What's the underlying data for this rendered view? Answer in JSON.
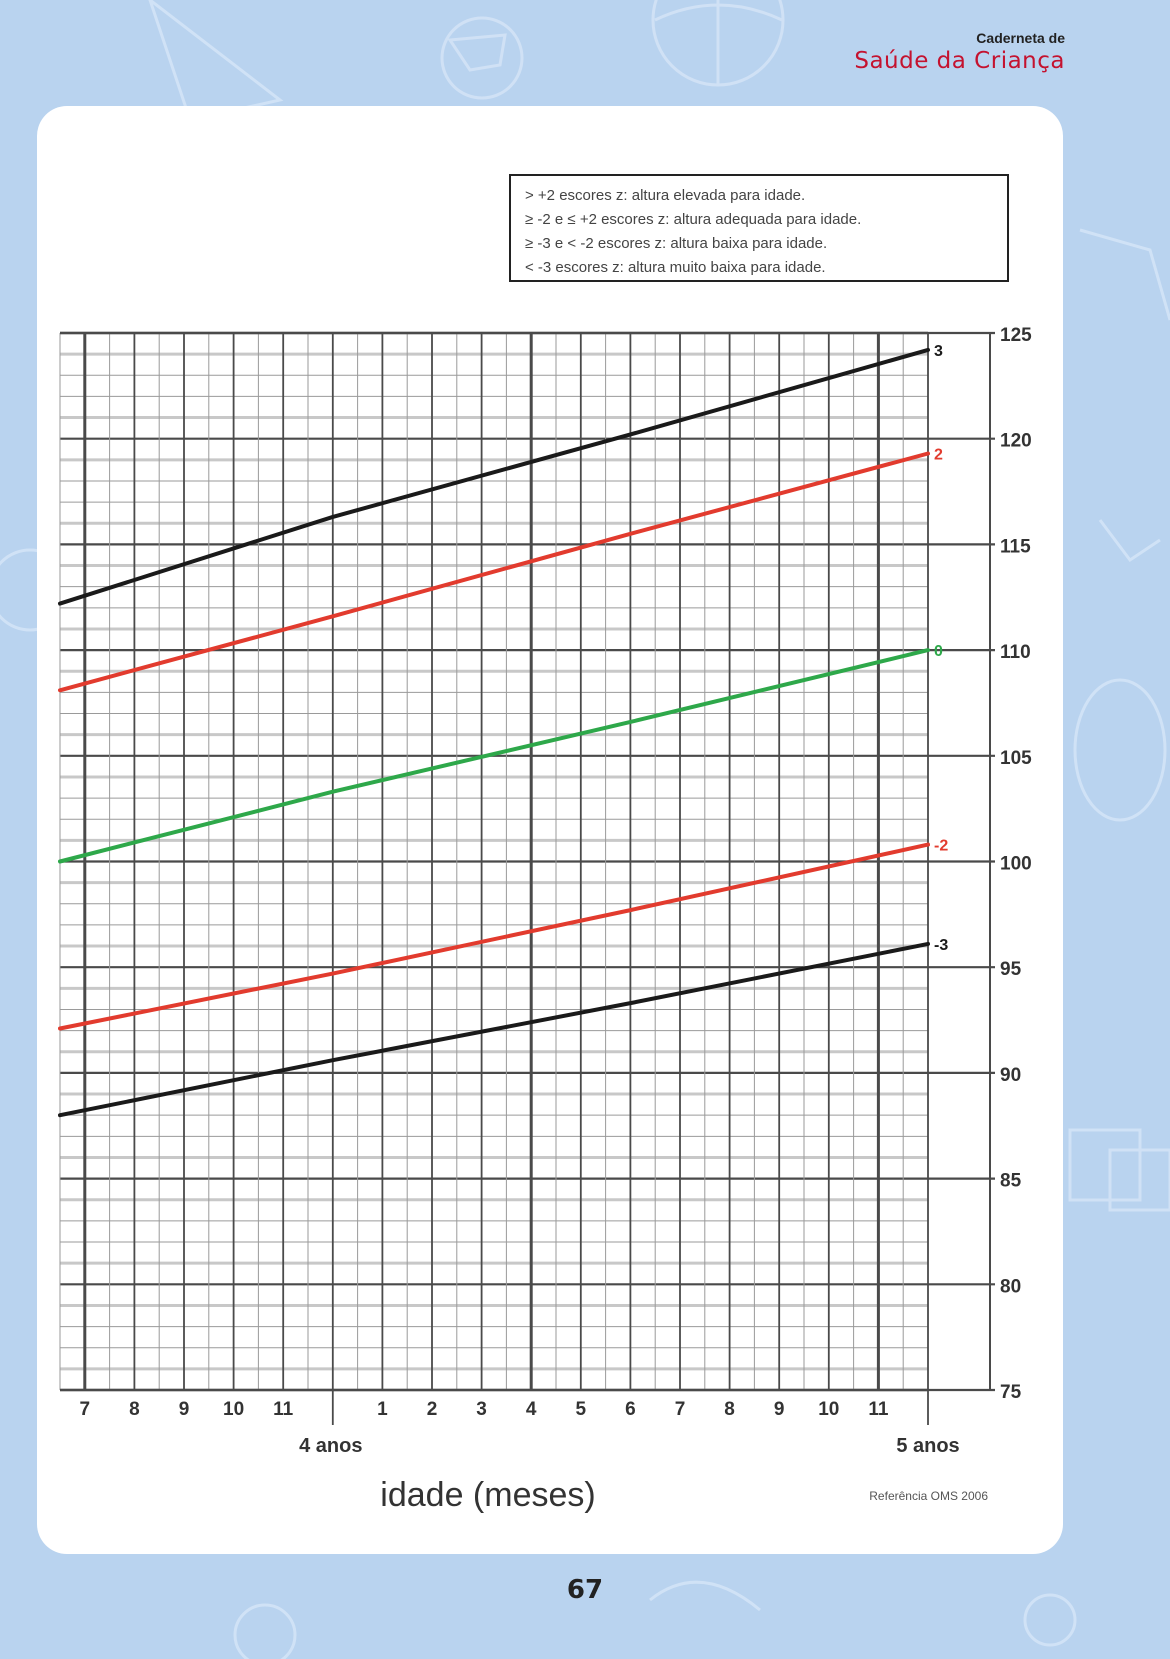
{
  "header": {
    "booklet_title_top": "Caderneta de",
    "booklet_title_main": "Saúde da Criança"
  },
  "legend_box": {
    "lines": [
      "> +2 escores z: altura elevada para idade.",
      "≥ -2 e ≤ +2 escores z: altura adequada para idade.",
      "≥ -3 e < -2 escores z: altura baixa para idade.",
      "< -3 escores z: altura muito baixa para idade."
    ]
  },
  "page_number": "67",
  "colors": {
    "background": "#b9d3ef",
    "black_curve": "#1a1a1a",
    "red_curve": "#e23b2e",
    "green_curve": "#2ea84a",
    "grid_major": "#4a4a4a",
    "grid_minor": "#9a9a9a",
    "grid_band": "#c8c8c8"
  },
  "chart_data": {
    "type": "line",
    "xlabel": "idade (meses)",
    "ylabel": "",
    "x_range": [
      42.5,
      60
    ],
    "ylim": [
      75,
      125
    ],
    "y_ticks": [
      75,
      80,
      85,
      90,
      95,
      100,
      105,
      110,
      115,
      120,
      125
    ],
    "x_ticks": [
      {
        "x": 43,
        "label": "7"
      },
      {
        "x": 44,
        "label": "8"
      },
      {
        "x": 45,
        "label": "9"
      },
      {
        "x": 46,
        "label": "10"
      },
      {
        "x": 47,
        "label": "11"
      },
      {
        "x": 49,
        "label": "1"
      },
      {
        "x": 50,
        "label": "2"
      },
      {
        "x": 51,
        "label": "3"
      },
      {
        "x": 52,
        "label": "4"
      },
      {
        "x": 53,
        "label": "5"
      },
      {
        "x": 54,
        "label": "6"
      },
      {
        "x": 55,
        "label": "7"
      },
      {
        "x": 56,
        "label": "8"
      },
      {
        "x": 57,
        "label": "9"
      },
      {
        "x": 58,
        "label": "10"
      },
      {
        "x": 59,
        "label": "11"
      }
    ],
    "year_labels": [
      {
        "x": 48,
        "label": "4 anos"
      },
      {
        "x": 60,
        "label": "5 anos"
      }
    ],
    "source_note": "Referência OMS 2006",
    "grid": true,
    "series": [
      {
        "name": "3",
        "color": "#1a1a1a",
        "x": [
          42.5,
          48,
          54,
          60
        ],
        "values": [
          112.2,
          116.3,
          120.2,
          124.2
        ]
      },
      {
        "name": "2",
        "color": "#e23b2e",
        "x": [
          42.5,
          48,
          54,
          60
        ],
        "values": [
          108.1,
          111.6,
          115.5,
          119.3
        ]
      },
      {
        "name": "0",
        "color": "#2ea84a",
        "x": [
          42.5,
          48,
          54,
          60
        ],
        "values": [
          100.0,
          103.3,
          106.6,
          110.0
        ]
      },
      {
        "name": "-2",
        "color": "#e23b2e",
        "x": [
          42.5,
          48,
          54,
          60
        ],
        "values": [
          92.1,
          94.7,
          97.7,
          100.8
        ]
      },
      {
        "name": "-3",
        "color": "#1a1a1a",
        "x": [
          42.5,
          48,
          54,
          60
        ],
        "values": [
          88.0,
          90.6,
          93.3,
          96.1
        ]
      }
    ]
  }
}
